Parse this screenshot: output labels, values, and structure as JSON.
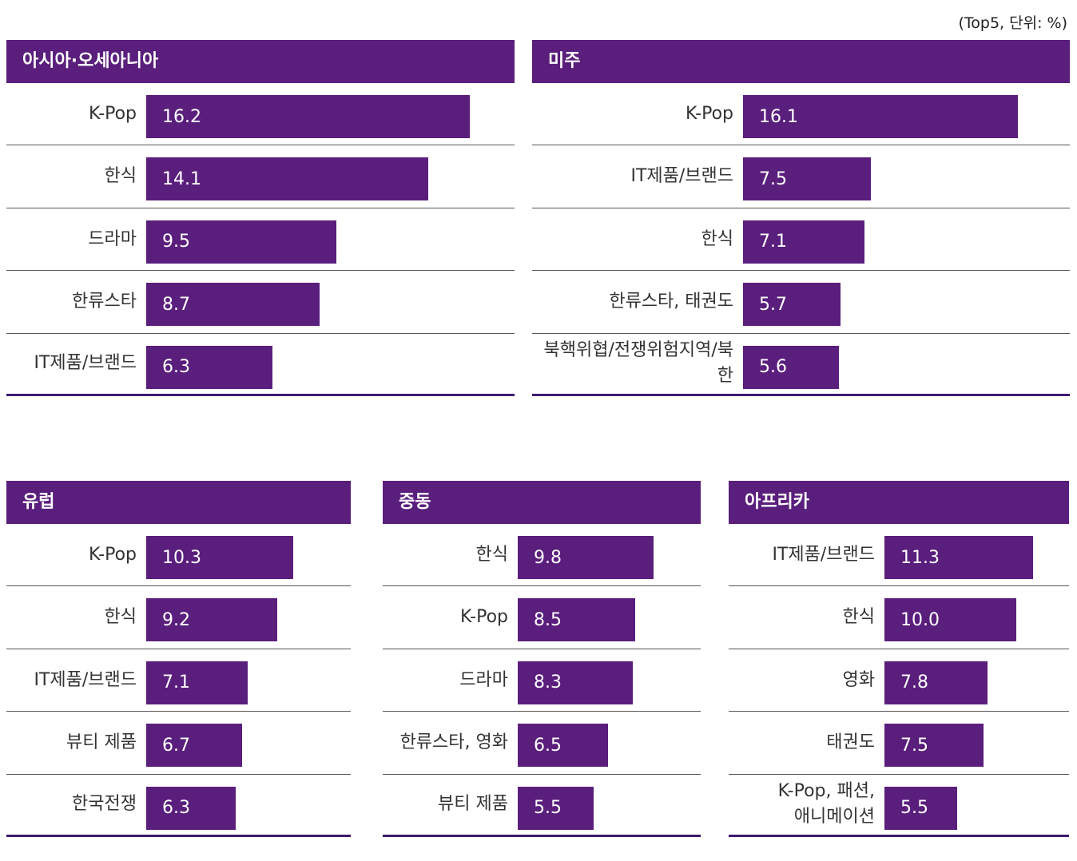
{
  "unit_note": "(Top5, 단위: %)",
  "colors": {
    "accent": "#5a1e7d",
    "divider": "#555555",
    "bottom_rule": "#3e1a6e"
  },
  "chart_data": [
    {
      "type": "bar",
      "title": "아시아·오세아니아",
      "categories": [
        "K-Pop",
        "한식",
        "드라마",
        "한류스타",
        "IT제품/브랜드"
      ],
      "values": [
        16.2,
        14.1,
        9.5,
        8.7,
        6.3
      ],
      "value_labels": [
        "16.2",
        "14.1",
        "9.5",
        "8.7",
        "6.3"
      ],
      "orientation": "horizontal",
      "xlim": [
        0,
        20
      ]
    },
    {
      "type": "bar",
      "title": "미주",
      "categories": [
        "K-Pop",
        "IT제품/브랜드",
        "한식",
        "한류스타, 태권도",
        "북핵위협/전쟁위험지역/북한"
      ],
      "values": [
        16.1,
        7.5,
        7.1,
        5.7,
        5.6
      ],
      "value_labels": [
        "16.1",
        "7.5",
        "7.1",
        "5.7",
        "5.6"
      ],
      "orientation": "horizontal",
      "xlim": [
        0,
        20
      ]
    },
    {
      "type": "bar",
      "title": "유럽",
      "categories": [
        "K-Pop",
        "한식",
        "IT제품/브랜드",
        "뷰티 제품",
        "한국전쟁"
      ],
      "values": [
        10.3,
        9.2,
        7.1,
        6.7,
        6.3
      ],
      "value_labels": [
        "10.3",
        "9.2",
        "7.1",
        "6.7",
        "6.3"
      ],
      "orientation": "horizontal",
      "xlim": [
        0,
        12
      ]
    },
    {
      "type": "bar",
      "title": "중동",
      "categories": [
        "한식",
        "K-Pop",
        "드라마",
        "한류스타, 영화",
        "뷰티 제품"
      ],
      "values": [
        9.8,
        8.5,
        8.3,
        6.5,
        5.5
      ],
      "value_labels": [
        "9.8",
        "8.5",
        "8.3",
        "6.5",
        "5.5"
      ],
      "orientation": "horizontal",
      "xlim": [
        0,
        12
      ]
    },
    {
      "type": "bar",
      "title": "아프리카",
      "categories": [
        "IT제품/브랜드",
        "한식",
        "영화",
        "태권도",
        "K-Pop, 패션,\n애니메이션"
      ],
      "values": [
        11.3,
        10.0,
        7.8,
        7.5,
        5.5
      ],
      "value_labels": [
        "11.3",
        "10.0",
        "7.8",
        "7.5",
        "5.5"
      ],
      "orientation": "horizontal",
      "xlim": [
        0,
        12
      ]
    }
  ]
}
